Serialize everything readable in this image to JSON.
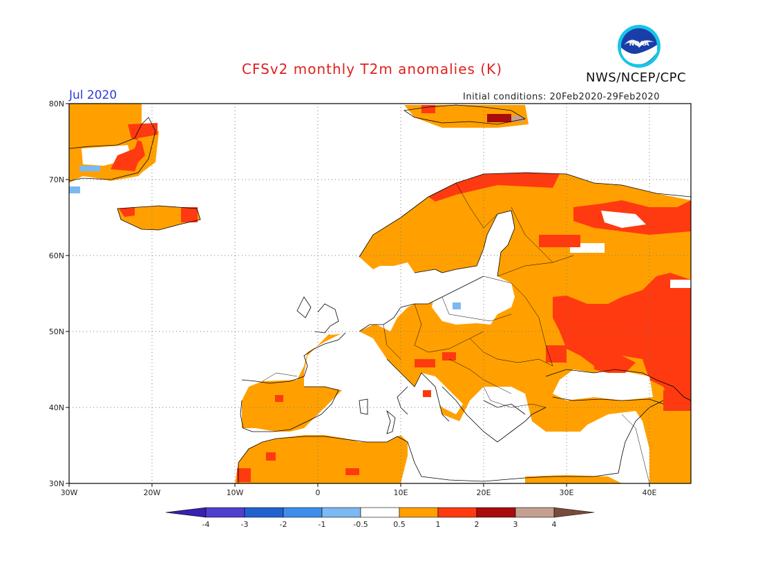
{
  "title": "CFSv2 monthly T2m anomalies (K)",
  "organization": "NWS/NCEP/CPC",
  "logo_text": "NOAA",
  "valid_month": "Jul 2020",
  "initial_conditions": "Initial conditions: 20Feb2020-29Feb2020",
  "map": {
    "projection": "lat-lon",
    "lon_range": [
      -30,
      45
    ],
    "lat_range": [
      30,
      80
    ],
    "grid": true,
    "lat_labels": [
      "80N",
      "70N",
      "60N",
      "50N",
      "40N",
      "30N"
    ],
    "lon_labels": [
      "30W",
      "20W",
      "10W",
      "0",
      "10E",
      "20E",
      "30E",
      "40E"
    ]
  },
  "colorbar": {
    "boundaries": [
      "-4",
      "-3",
      "-2",
      "-1",
      "-0.5",
      "0.5",
      "1",
      "2",
      "3",
      "4"
    ],
    "colors": [
      "#3a1fb0",
      "#5040d0",
      "#2262d0",
      "#3d8eea",
      "#7cb8f2",
      "#ffffff",
      "#ffa000",
      "#ff3a10",
      "#a80c0c",
      "#c4a090",
      "#7a4a3c"
    ]
  }
}
